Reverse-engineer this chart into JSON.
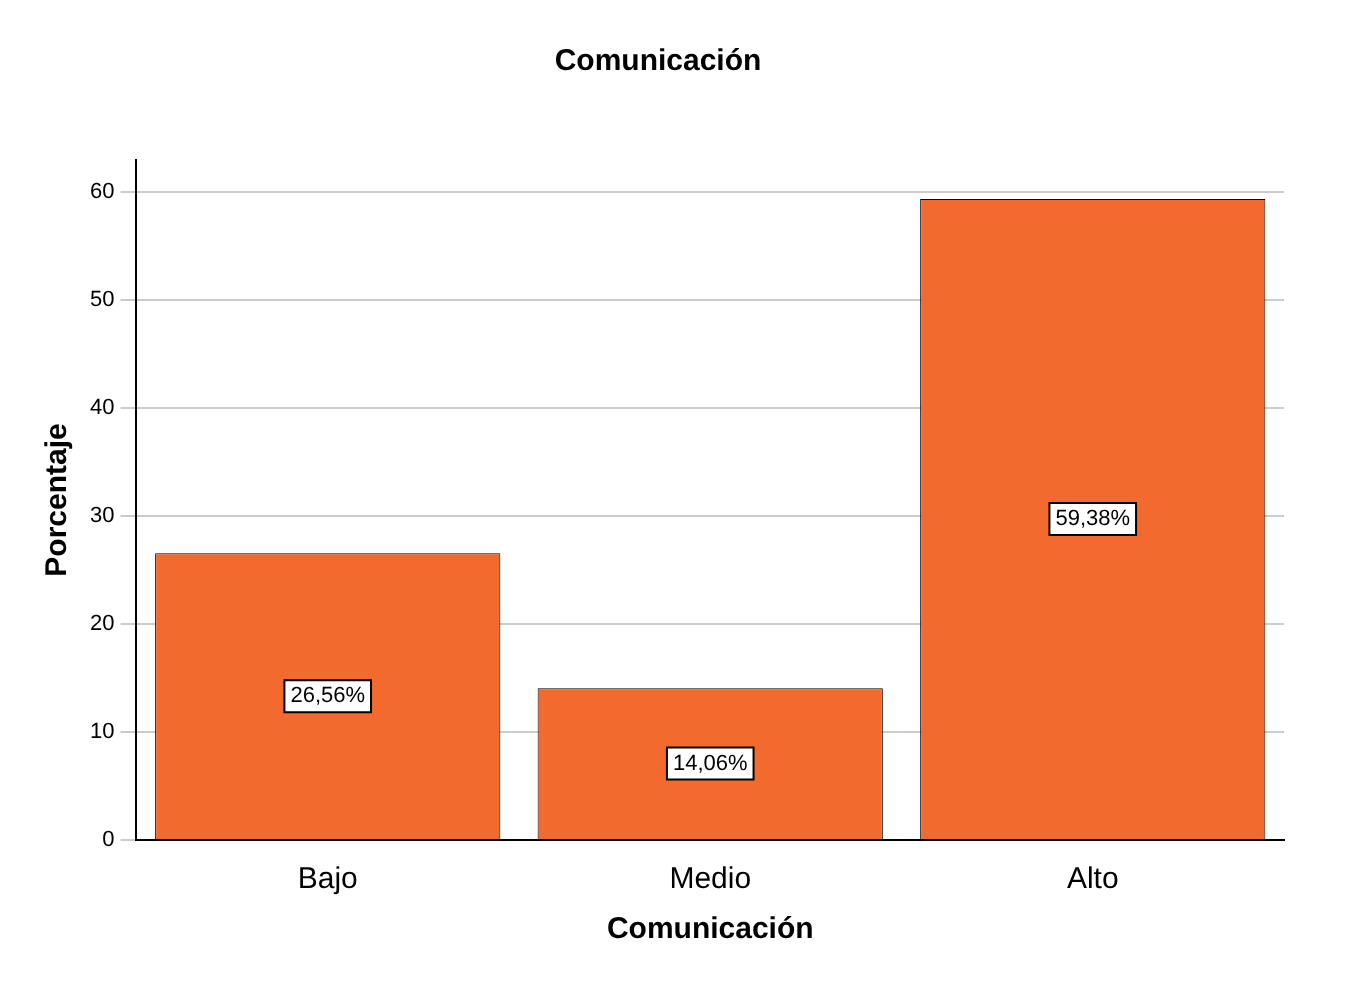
{
  "chart_data": {
    "type": "bar",
    "title": "Comunicación",
    "xlabel": "Comunicación",
    "ylabel": "Porcentaje",
    "categories": [
      "Bajo",
      "Medio",
      "Alto"
    ],
    "values": [
      26.56,
      14.06,
      59.38
    ],
    "value_labels": [
      "26,56%",
      "14,06%",
      "59,38%"
    ],
    "color": "#f26a2e",
    "ylim": [
      0,
      63
    ],
    "yticks": [
      0,
      10,
      20,
      30,
      40,
      50,
      60
    ],
    "grid": "y"
  }
}
